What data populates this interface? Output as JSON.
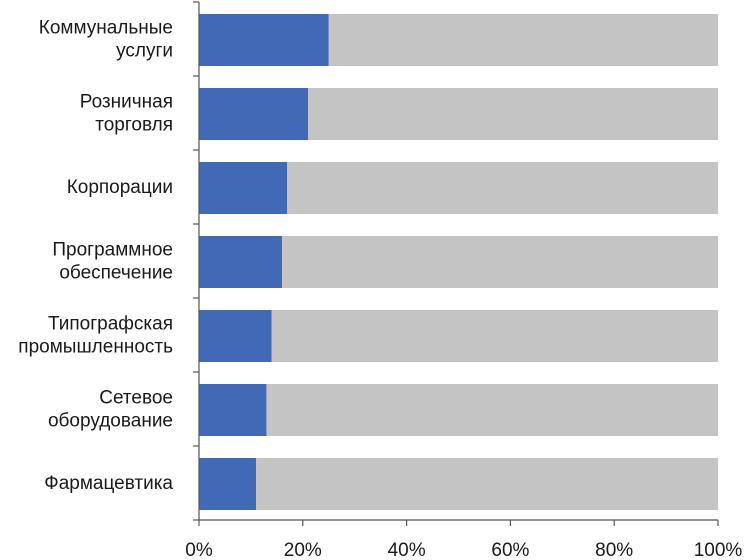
{
  "chart_data": {
    "type": "bar",
    "orientation": "horizontal",
    "stacked_100": true,
    "categories": [
      [
        "Коммунальные",
        "услуги"
      ],
      [
        "Розничная",
        "торговля"
      ],
      [
        "Корпорации"
      ],
      [
        "Программное",
        "обеспечение"
      ],
      [
        "Типографская",
        "промышленность"
      ],
      [
        "Сетевое",
        "оборудование"
      ],
      [
        "Фармацевтика"
      ]
    ],
    "series": [
      {
        "values": [
          25,
          21,
          17,
          16,
          14,
          13,
          11
        ],
        "color": "#4169b6"
      },
      {
        "values": [
          75,
          79,
          83,
          84,
          86,
          87,
          89
        ],
        "color": "#c4c4c4"
      }
    ],
    "xlim": [
      0,
      100
    ],
    "xticks": [
      0,
      20,
      40,
      60,
      80,
      100
    ],
    "xtick_labels": [
      "0%",
      "20%",
      "40%",
      "60%",
      "80%",
      "100%"
    ],
    "grid": false,
    "legend": "none",
    "title": "",
    "xlabel": "",
    "ylabel": ""
  }
}
